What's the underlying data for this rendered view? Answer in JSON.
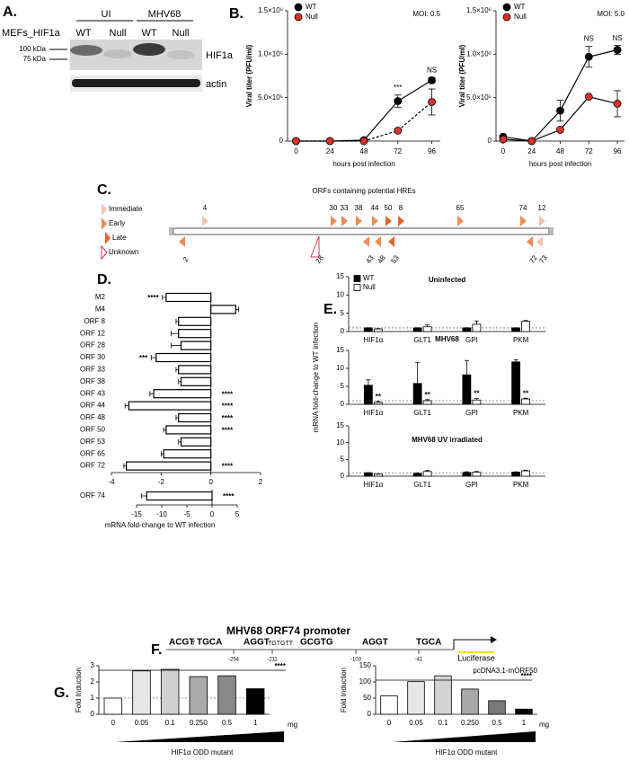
{
  "panel_labels": [
    "A.",
    "B.",
    "C.",
    "D.",
    "E.",
    "F.",
    "G."
  ],
  "blot": {
    "cell_line": "MEFs_HIF1a",
    "groups": [
      {
        "label": "UI",
        "lanes": [
          "WT",
          "Null"
        ]
      },
      {
        "label": "MHV68",
        "lanes": [
          "WT",
          "Null"
        ]
      }
    ],
    "markers": [
      "100 kDa",
      "75 kDa"
    ],
    "proteins": [
      "HIF1a",
      "actin"
    ]
  },
  "orf_map": {
    "title": "ORFs containing potential HREs",
    "legend": [
      {
        "label": "Immediate",
        "color": "#f5c3ae"
      },
      {
        "label": "Early",
        "color": "#ef8a52"
      },
      {
        "label": "Late",
        "color": "#e2652c"
      },
      {
        "label": "Unknown",
        "color": "#d9344a"
      }
    ],
    "above": [
      {
        "label": "4",
        "kind": "Immediate"
      },
      {
        "label": "30",
        "kind": "Early"
      },
      {
        "label": "33",
        "kind": "Early"
      },
      {
        "label": "38",
        "kind": "Early"
      },
      {
        "label": "44",
        "kind": "Early"
      },
      {
        "label": "50",
        "kind": "Late"
      },
      {
        "label": "8",
        "kind": "Late"
      },
      {
        "label": "65",
        "kind": "Early"
      },
      {
        "label": "74",
        "kind": "Early"
      },
      {
        "label": "12",
        "kind": "Immediate"
      }
    ],
    "below": [
      {
        "label": "2",
        "kind": "Early"
      },
      {
        "label": "28",
        "kind": "Unknown"
      },
      {
        "label": "43",
        "kind": "Early"
      },
      {
        "label": "48",
        "kind": "Early"
      },
      {
        "label": "53",
        "kind": "Late"
      },
      {
        "label": "72",
        "kind": "Early"
      },
      {
        "label": "73",
        "kind": "Immediate"
      }
    ]
  },
  "promoter": {
    "title": "MHV68 ORF74 promoter",
    "elements": [
      "ACGT",
      "T",
      "TGCA",
      "AGGT",
      "TGTGTT",
      "GCGTG",
      "AGGT",
      "TGCA"
    ],
    "positions": [
      -254,
      -211,
      -103,
      -41
    ],
    "reporter": "Luciferase"
  },
  "chart_data": [
    {
      "type": "line",
      "annotation": "MOI: 0.5",
      "xlabel": "hours post infection",
      "ylabel": "Viral titer (PFU/ml)",
      "x": [
        0,
        24,
        48,
        72,
        96
      ],
      "xlim": [
        -6,
        102
      ],
      "xticks": [
        0,
        24,
        48,
        72,
        96
      ],
      "ylim": [
        0,
        1500000
      ],
      "yticks": [
        0,
        {
          "value": 500000,
          "label": "5.0×10⁵"
        },
        {
          "value": 1000000,
          "label": "1.0×10⁶"
        },
        {
          "value": 1500000,
          "label": "1.5×10⁶"
        }
      ],
      "significance": [
        null,
        null,
        null,
        "***",
        "NS"
      ],
      "series": [
        {
          "name": "WT",
          "color": "#000000",
          "linestyle": "solid",
          "values": [
            0,
            0,
            10000,
            460000,
            700000
          ],
          "errors": [
            null,
            null,
            null,
            70000,
            30000
          ]
        },
        {
          "name": "Null",
          "color": "#d9342b",
          "linestyle": "dashed",
          "values": [
            0,
            0,
            0,
            120000,
            450000
          ],
          "errors": [
            null,
            null,
            null,
            null,
            150000
          ]
        }
      ]
    },
    {
      "type": "line",
      "annotation": "MOI: 5.0",
      "xlabel": "hours post infection",
      "ylabel": "Viral titer (PFU/ml)",
      "x": [
        0,
        24,
        48,
        72,
        96
      ],
      "xlim": [
        -6,
        102
      ],
      "xticks": [
        0,
        24,
        48,
        72,
        96
      ],
      "ylim": [
        0,
        1500000
      ],
      "yticks": [
        0,
        {
          "value": 500000,
          "label": "5.0×10⁵"
        },
        {
          "value": 1000000,
          "label": "1.0×10⁶"
        },
        {
          "value": 1500000,
          "label": "1.5×10⁶"
        }
      ],
      "significance": [
        null,
        null,
        null,
        "NS",
        "NS"
      ],
      "series": [
        {
          "name": "WT",
          "color": "#000000",
          "linestyle": "solid",
          "values": [
            50000,
            0,
            350000,
            970000,
            1050000
          ],
          "errors": [
            null,
            null,
            120000,
            120000,
            50000
          ]
        },
        {
          "name": "Null",
          "color": "#d9342b",
          "linestyle": "solid",
          "values": [
            20000,
            0,
            130000,
            510000,
            430000
          ],
          "errors": [
            null,
            null,
            null,
            null,
            150000
          ]
        }
      ]
    },
    {
      "type": "bar",
      "orientation": "horizontal",
      "color": "#ffffff",
      "categories": [
        "M2",
        "M4",
        "ORF 8",
        "ORF 12",
        "ORF 28",
        "ORF 30",
        "ORF 33",
        "ORF 38",
        "ORF 43",
        "ORF 44",
        "ORF 48",
        "ORF 50",
        "ORF 53",
        "ORF 65",
        "ORF 72"
      ],
      "values": [
        -1.8,
        1.0,
        -1.3,
        -1.3,
        -1.2,
        -2.2,
        -1.3,
        -1.2,
        -2.3,
        -3.3,
        -1.3,
        -1.8,
        -1.2,
        -1.9,
        -3.4
      ],
      "errors": [
        0.15,
        0.12,
        0.1,
        0.3,
        0.4,
        0.2,
        0.1,
        0.1,
        0.15,
        0.15,
        0.1,
        0.1,
        0.1,
        0.1,
        0.1
      ],
      "significance": [
        "****",
        null,
        null,
        null,
        null,
        "***",
        null,
        null,
        "****",
        "****",
        "****",
        "****",
        null,
        null,
        "****"
      ],
      "xlim": [
        -4,
        2
      ],
      "xticks": [
        -4,
        -2,
        0,
        2
      ]
    },
    {
      "type": "bar",
      "orientation": "horizontal",
      "color": "#ffffff",
      "categories": [
        "ORF 74"
      ],
      "values": [
        -13
      ],
      "errors": [
        1
      ],
      "significance": [
        "****"
      ],
      "xlim": [
        -15,
        5
      ],
      "xticks": [
        -15,
        -10,
        -5,
        0,
        5
      ],
      "xlabel": "mRNA fold-change to WT infection"
    },
    {
      "type": "bar",
      "orientation": "vertical",
      "title": "Uninfected",
      "categories": [
        "HIF1α",
        "GLT1",
        "GPI",
        "PKM"
      ],
      "ylim": [
        0,
        15
      ],
      "yticks": [
        0,
        5,
        10,
        15
      ],
      "refline": 1,
      "series": [
        {
          "name": "WT",
          "color": "#000000",
          "values": [
            1,
            1,
            1,
            1
          ],
          "errors": [
            0.05,
            0.05,
            0.05,
            0.05
          ]
        },
        {
          "name": "Null",
          "color": "#ffffff",
          "values": [
            0.7,
            1.3,
            2,
            2.8
          ],
          "errors": [
            0.1,
            0.5,
            0.9,
            0.2
          ]
        }
      ]
    },
    {
      "type": "bar",
      "orientation": "vertical",
      "title": "MHV68",
      "ylabel": "mRNA fold-change to WT infection",
      "categories": [
        "HIF1α",
        "GLT1",
        "GPI",
        "PKM"
      ],
      "ylim": [
        0,
        15
      ],
      "yticks": [
        0,
        5,
        10,
        15
      ],
      "refline": 1,
      "significance": [
        "**",
        "**",
        "**",
        "**"
      ],
      "series": [
        {
          "color": "#000000",
          "values": [
            5.3,
            5.8,
            8.2,
            11.8
          ],
          "errors": [
            1.5,
            5.8,
            4,
            0.6
          ]
        },
        {
          "color": "#ffffff",
          "values": [
            0.5,
            1,
            1.2,
            1.5
          ],
          "errors": [
            0.3,
            0.3,
            0.4,
            0.2
          ]
        }
      ]
    },
    {
      "type": "bar",
      "orientation": "vertical",
      "title": "MHV68 UV irradiated",
      "categories": [
        "HIF1α",
        "GLT1",
        "GPI",
        "PKM"
      ],
      "ylim": [
        0,
        15
      ],
      "yticks": [
        0,
        5,
        10,
        15
      ],
      "refline": 1,
      "series": [
        {
          "color": "#000000",
          "values": [
            1,
            0.8,
            1.1,
            1.2
          ],
          "errors": [
            0.05,
            0.2,
            0.2,
            0.1
          ]
        },
        {
          "color": "#ffffff",
          "values": [
            0.6,
            1.4,
            1.2,
            1.6
          ],
          "errors": [
            0.1,
            0.3,
            0.2,
            0.2
          ]
        }
      ]
    },
    {
      "type": "bar",
      "orientation": "vertical",
      "categories": [
        "0",
        "0.05",
        "0.1",
        "0.250",
        "0.5",
        "1"
      ],
      "unit": "mg",
      "xlabel": "HIF1α ODD mutant",
      "ylabel": "Fold Induction",
      "ylim": [
        0,
        3
      ],
      "yticks": [
        0,
        1,
        2,
        3
      ],
      "refline": 1,
      "significance": "****",
      "values": [
        1,
        2.68,
        2.78,
        2.33,
        2.38,
        1.58
      ],
      "colors": [
        "#ffffff",
        "#e6e6e6",
        "#d0d0d0",
        "#aaaaaa",
        "#888888",
        "#000000"
      ]
    },
    {
      "type": "bar",
      "orientation": "vertical",
      "categories": [
        "0",
        "0.05",
        "0.1",
        "0.250",
        "0.5",
        "1"
      ],
      "unit": "mg",
      "xlabel": "HIF1α ODD mutant",
      "ylabel": "Fold Induction",
      "ylim": [
        0,
        150
      ],
      "yticks": [
        0,
        50,
        100,
        150
      ],
      "significance": "****",
      "note": "pcDNA3.1-mORF50",
      "values": [
        57,
        101,
        119,
        78,
        42,
        16
      ],
      "colors": [
        "#ffffff",
        "#e6e6e6",
        "#d3d3d3",
        "#a8a8a8",
        "#7a7a7a",
        "#000000"
      ]
    }
  ]
}
